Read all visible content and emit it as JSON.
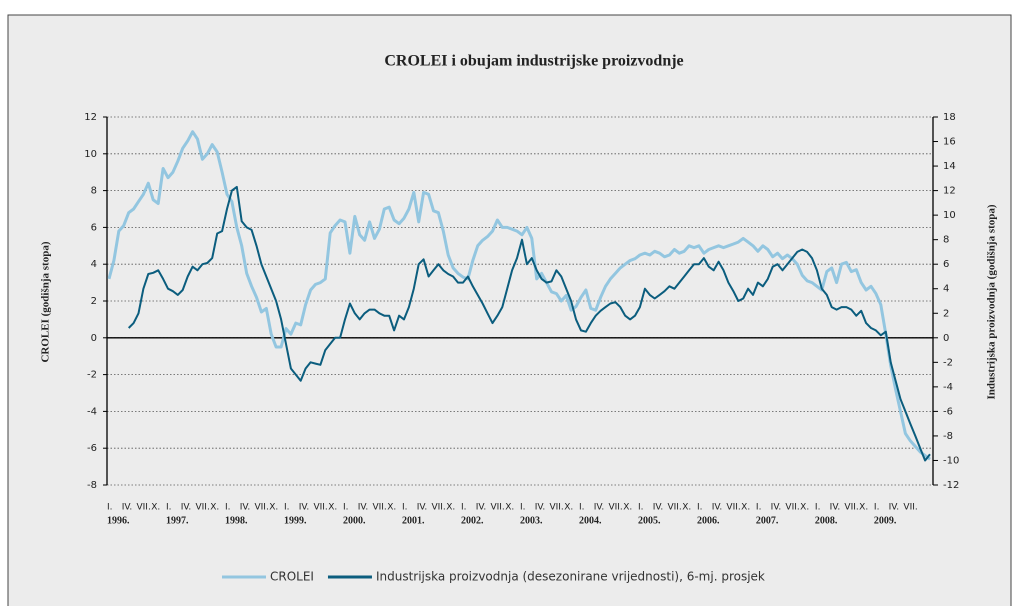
{
  "chart_data": {
    "type": "line",
    "title": "CROLEI i obujam industrijske proizvodnje",
    "ylabel": "CROLEI (godišnja stopa)",
    "y2label": "Industrijska proizvodnja (godišnja stopa)",
    "categories": [
      "I.",
      null,
      null,
      "IV.",
      null,
      null,
      "VII.",
      null,
      null,
      "X.",
      null,
      null,
      "I.",
      null,
      null,
      "IV.",
      null,
      null,
      "VII.",
      null,
      null,
      "X.",
      null,
      null,
      "I.",
      null,
      null,
      "IV.",
      null,
      null,
      "VII.",
      null,
      null,
      "X.",
      null,
      null,
      "I.",
      null,
      null,
      "IV.",
      null,
      null,
      "VII.",
      null,
      null,
      "X.",
      null,
      null,
      "I.",
      null,
      null,
      "IV.",
      null,
      null,
      "VII.",
      null,
      null,
      "X.",
      null,
      null,
      "I.",
      null,
      null,
      "IV.",
      null,
      null,
      "VII.",
      null,
      null,
      "X.",
      null,
      null,
      "I.",
      null,
      null,
      "IV.",
      null,
      null,
      "VII.",
      null,
      null,
      "X.",
      null,
      null,
      "I.",
      null,
      null,
      "IV.",
      null,
      null,
      "VII.",
      null,
      null,
      "X.",
      null,
      null,
      "I.",
      null,
      null,
      "IV.",
      null,
      null,
      "VII.",
      null,
      null,
      "X.",
      null,
      null,
      "I.",
      null,
      null,
      "IV.",
      null,
      null,
      "VII.",
      null,
      null,
      "X.",
      null,
      null,
      "I.",
      null,
      null,
      "IV.",
      null,
      null,
      "VII.",
      null,
      null,
      "X.",
      null,
      null,
      "I.",
      null,
      null,
      "IV.",
      null,
      null,
      "VII.",
      null,
      null,
      "X.",
      null,
      null,
      "I.",
      null,
      null,
      "IV.",
      null,
      null,
      "VII.",
      null,
      null,
      "X.",
      null,
      null,
      "I.",
      null,
      null,
      "IV.",
      null,
      null,
      "VII.",
      null,
      null,
      null,
      null,
      null
    ],
    "years": [
      "1996.",
      "1997.",
      "1998.",
      "1999.",
      "2000.",
      "2001.",
      "2002.",
      "2003.",
      "2004.",
      "2005.",
      "2006.",
      "2007.",
      "2008.",
      "2009."
    ],
    "series": [
      {
        "name": "CROLEI",
        "color": "#93c6e0",
        "axis": "y",
        "values": [
          3.2,
          4.2,
          5.8,
          6.1,
          6.8,
          7.0,
          7.4,
          7.8,
          8.4,
          7.5,
          7.3,
          9.2,
          8.7,
          9.0,
          9.6,
          10.3,
          10.7,
          11.2,
          10.8,
          9.7,
          10.0,
          10.5,
          10.1,
          9.0,
          7.8,
          7.4,
          6.0,
          5.0,
          3.5,
          2.8,
          2.2,
          1.4,
          1.6,
          0.2,
          -0.5,
          -0.5,
          0.5,
          0.2,
          0.8,
          0.7,
          1.8,
          2.6,
          2.9,
          3.0,
          3.2,
          5.7,
          6.1,
          6.4,
          6.3,
          4.6,
          6.6,
          5.6,
          5.3,
          6.3,
          5.4,
          5.9,
          7.0,
          7.1,
          6.4,
          6.2,
          6.5,
          7.0,
          7.9,
          6.3,
          7.9,
          7.8,
          6.9,
          6.8,
          5.8,
          4.5,
          3.8,
          3.5,
          3.3,
          3.2,
          4.2,
          5.0,
          5.3,
          5.5,
          5.8,
          6.4,
          6.0,
          6.0,
          5.9,
          5.8,
          5.6,
          6.0,
          5.4,
          3.2,
          3.5,
          3.0,
          2.5,
          2.4,
          2.0,
          2.3,
          1.5,
          1.7,
          2.2,
          2.6,
          1.6,
          1.5,
          2.2,
          2.8,
          3.2,
          3.5,
          3.8,
          4.0,
          4.2,
          4.3,
          4.5,
          4.6,
          4.5,
          4.7,
          4.6,
          4.4,
          4.5,
          4.8,
          4.6,
          4.7,
          5.0,
          4.9,
          5.0,
          4.6,
          4.8,
          4.9,
          5.0,
          4.9,
          5.0,
          5.1,
          5.2,
          5.4,
          5.2,
          5.0,
          4.7,
          5.0,
          4.8,
          4.4,
          4.6,
          4.3,
          4.5,
          4.3,
          4.0,
          3.4,
          3.1,
          3.0,
          2.8,
          2.6,
          3.6,
          3.8,
          3.0,
          4.0,
          4.1,
          3.6,
          3.7,
          3.0,
          2.6,
          2.8,
          2.4,
          1.8,
          0.2,
          -1.5,
          -2.8,
          -4.0,
          -5.2,
          -5.6,
          -5.9,
          -6.2,
          -6.4,
          -6.6
        ]
      },
      {
        "name": "Industrijska proizvodnja (desezonirane vrijednosti), 6-mj. prosjek",
        "color": "#0b5d7e",
        "axis": "y2",
        "values": [
          null,
          null,
          null,
          null,
          0.8,
          1.2,
          2.0,
          4.0,
          5.2,
          5.3,
          5.5,
          4.8,
          4.0,
          3.8,
          3.5,
          3.9,
          5.0,
          5.8,
          5.5,
          6.0,
          6.1,
          6.5,
          8.5,
          8.7,
          10.5,
          12.0,
          12.3,
          9.5,
          9.0,
          8.8,
          7.5,
          6.0,
          5.0,
          4.0,
          3.0,
          1.5,
          -0.5,
          -2.5,
          -3.0,
          -3.5,
          -2.5,
          -2.0,
          -2.1,
          -2.2,
          -1.0,
          -0.5,
          0,
          0,
          1.5,
          2.8,
          2.0,
          1.5,
          2.0,
          2.3,
          2.3,
          2.0,
          1.8,
          1.8,
          0.6,
          1.8,
          1.5,
          2.5,
          4.0,
          6.0,
          6.4,
          5.0,
          5.5,
          6.0,
          5.5,
          5.2,
          5.0,
          4.5,
          4.5,
          5.0,
          4.2,
          3.5,
          2.8,
          2.0,
          1.2,
          1.8,
          2.5,
          4.0,
          5.5,
          6.5,
          8.0,
          6.0,
          6.5,
          5.5,
          4.8,
          4.5,
          4.6,
          5.5,
          5.0,
          4.0,
          3.0,
          1.5,
          0.6,
          0.5,
          1.2,
          1.8,
          2.2,
          2.5,
          2.8,
          2.9,
          2.5,
          1.8,
          1.5,
          1.8,
          2.5,
          4.0,
          3.5,
          3.2,
          3.5,
          3.8,
          4.2,
          4.0,
          4.5,
          5.0,
          5.5,
          6.0,
          6.0,
          6.5,
          5.8,
          5.5,
          6.2,
          5.5,
          4.5,
          3.8,
          3.0,
          3.2,
          4.0,
          3.5,
          4.5,
          4.2,
          4.8,
          5.8,
          6.0,
          5.5,
          6.0,
          6.5,
          7.0,
          7.2,
          7.0,
          6.5,
          5.5,
          4.0,
          3.5,
          2.5,
          2.3,
          2.5,
          2.5,
          2.3,
          1.8,
          2.2,
          1.2,
          0.8,
          0.6,
          0.2,
          0.5,
          -2.0,
          -3.5,
          -5.0,
          -6.0,
          -7.0,
          -8.0,
          -9.0,
          -10.0,
          -9.5
        ]
      }
    ],
    "ylim": [
      -8,
      12
    ],
    "yticks": [
      -8,
      -6,
      -4,
      -2,
      0,
      2,
      4,
      6,
      8,
      10,
      12
    ],
    "y2lim": [
      -12,
      18
    ],
    "y2ticks": [
      -12,
      -10,
      -8,
      -6,
      -4,
      -2,
      0,
      2,
      4,
      6,
      8,
      10,
      12,
      14,
      16,
      18
    ],
    "grid": true,
    "legend": "bottom"
  }
}
